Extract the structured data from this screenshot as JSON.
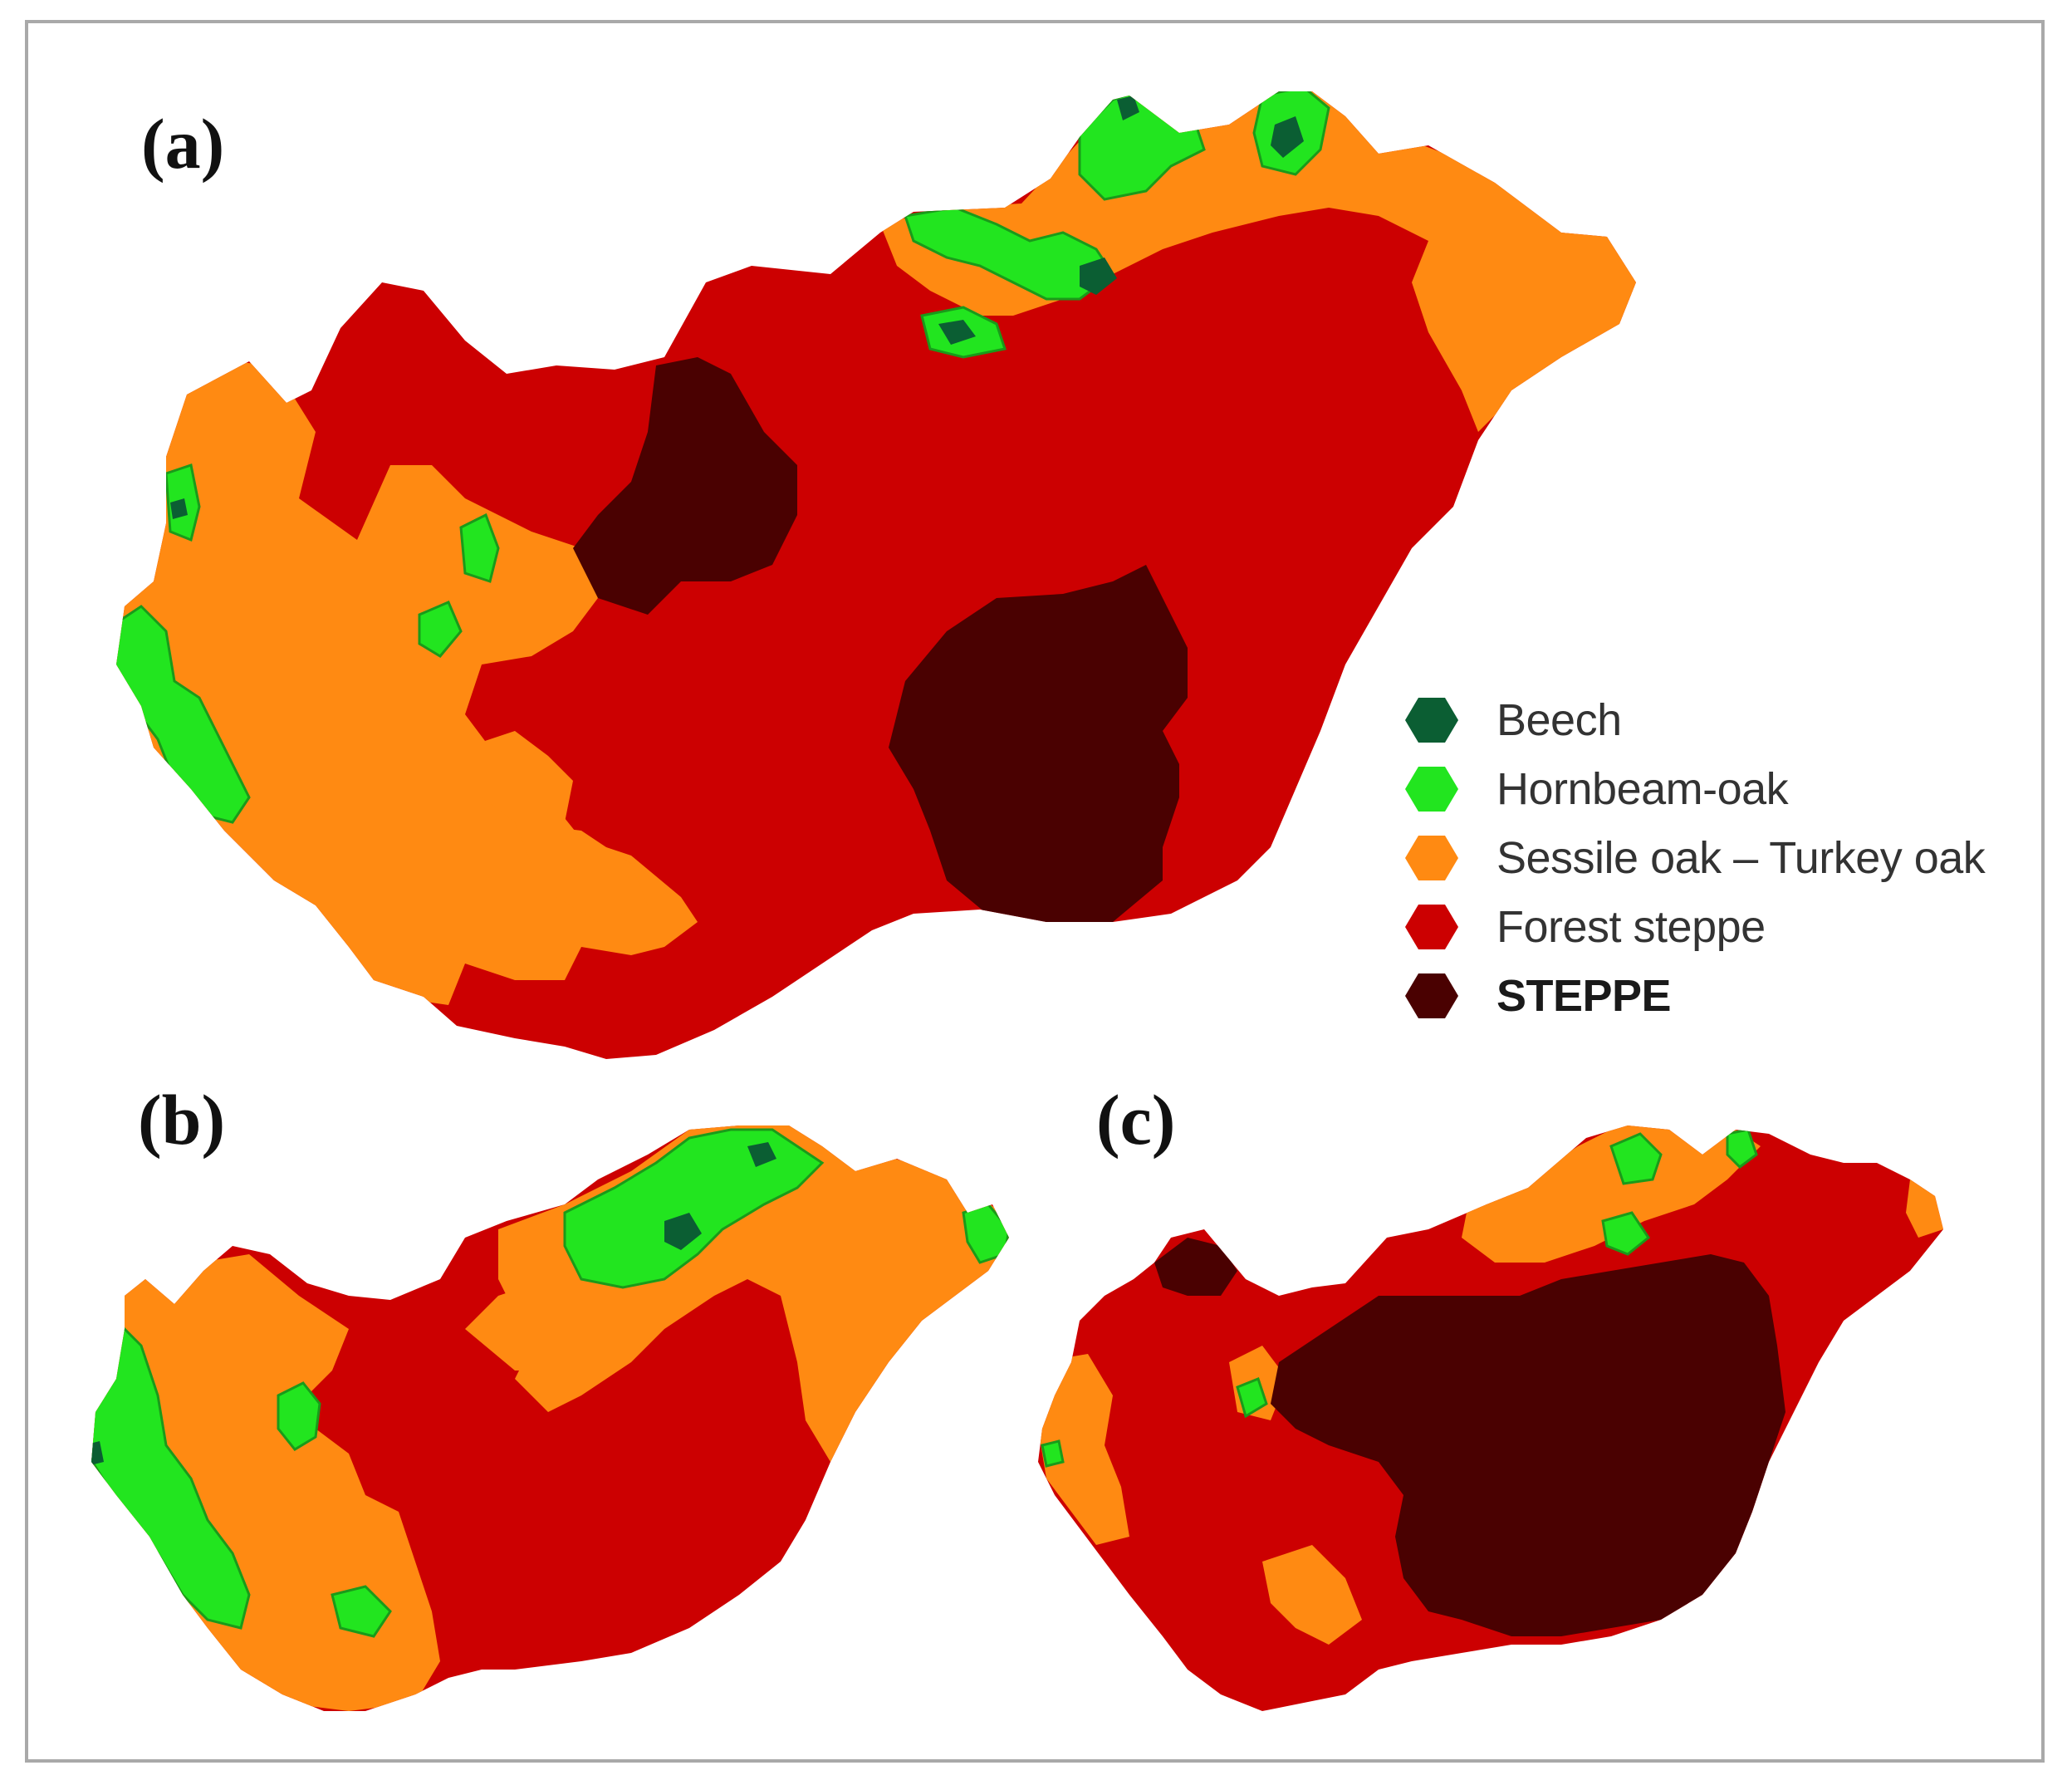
{
  "panels": {
    "a": "(a)",
    "b": "(b)",
    "c": "(c)"
  },
  "legend": {
    "items": [
      {
        "label": "Beech",
        "color": "#0b5e33",
        "bold": false
      },
      {
        "label": "Hornbeam-oak",
        "color": "#22e51f",
        "bold": false
      },
      {
        "label": "Sessile oak – Turkey oak",
        "color": "#ff8a12",
        "bold": false
      },
      {
        "label": "Forest steppe",
        "color": "#cc0001",
        "bold": false
      },
      {
        "label": "STEPPE",
        "color": "#4a0101",
        "bold": true
      }
    ]
  },
  "colors": {
    "beech": "#0b5e33",
    "hornbeam_oak": "#22e51f",
    "sessile_turkey_oak": "#ff8a12",
    "forest_steppe": "#cc0001",
    "steppe": "#4a0101",
    "frame": "#a9a9a9"
  }
}
